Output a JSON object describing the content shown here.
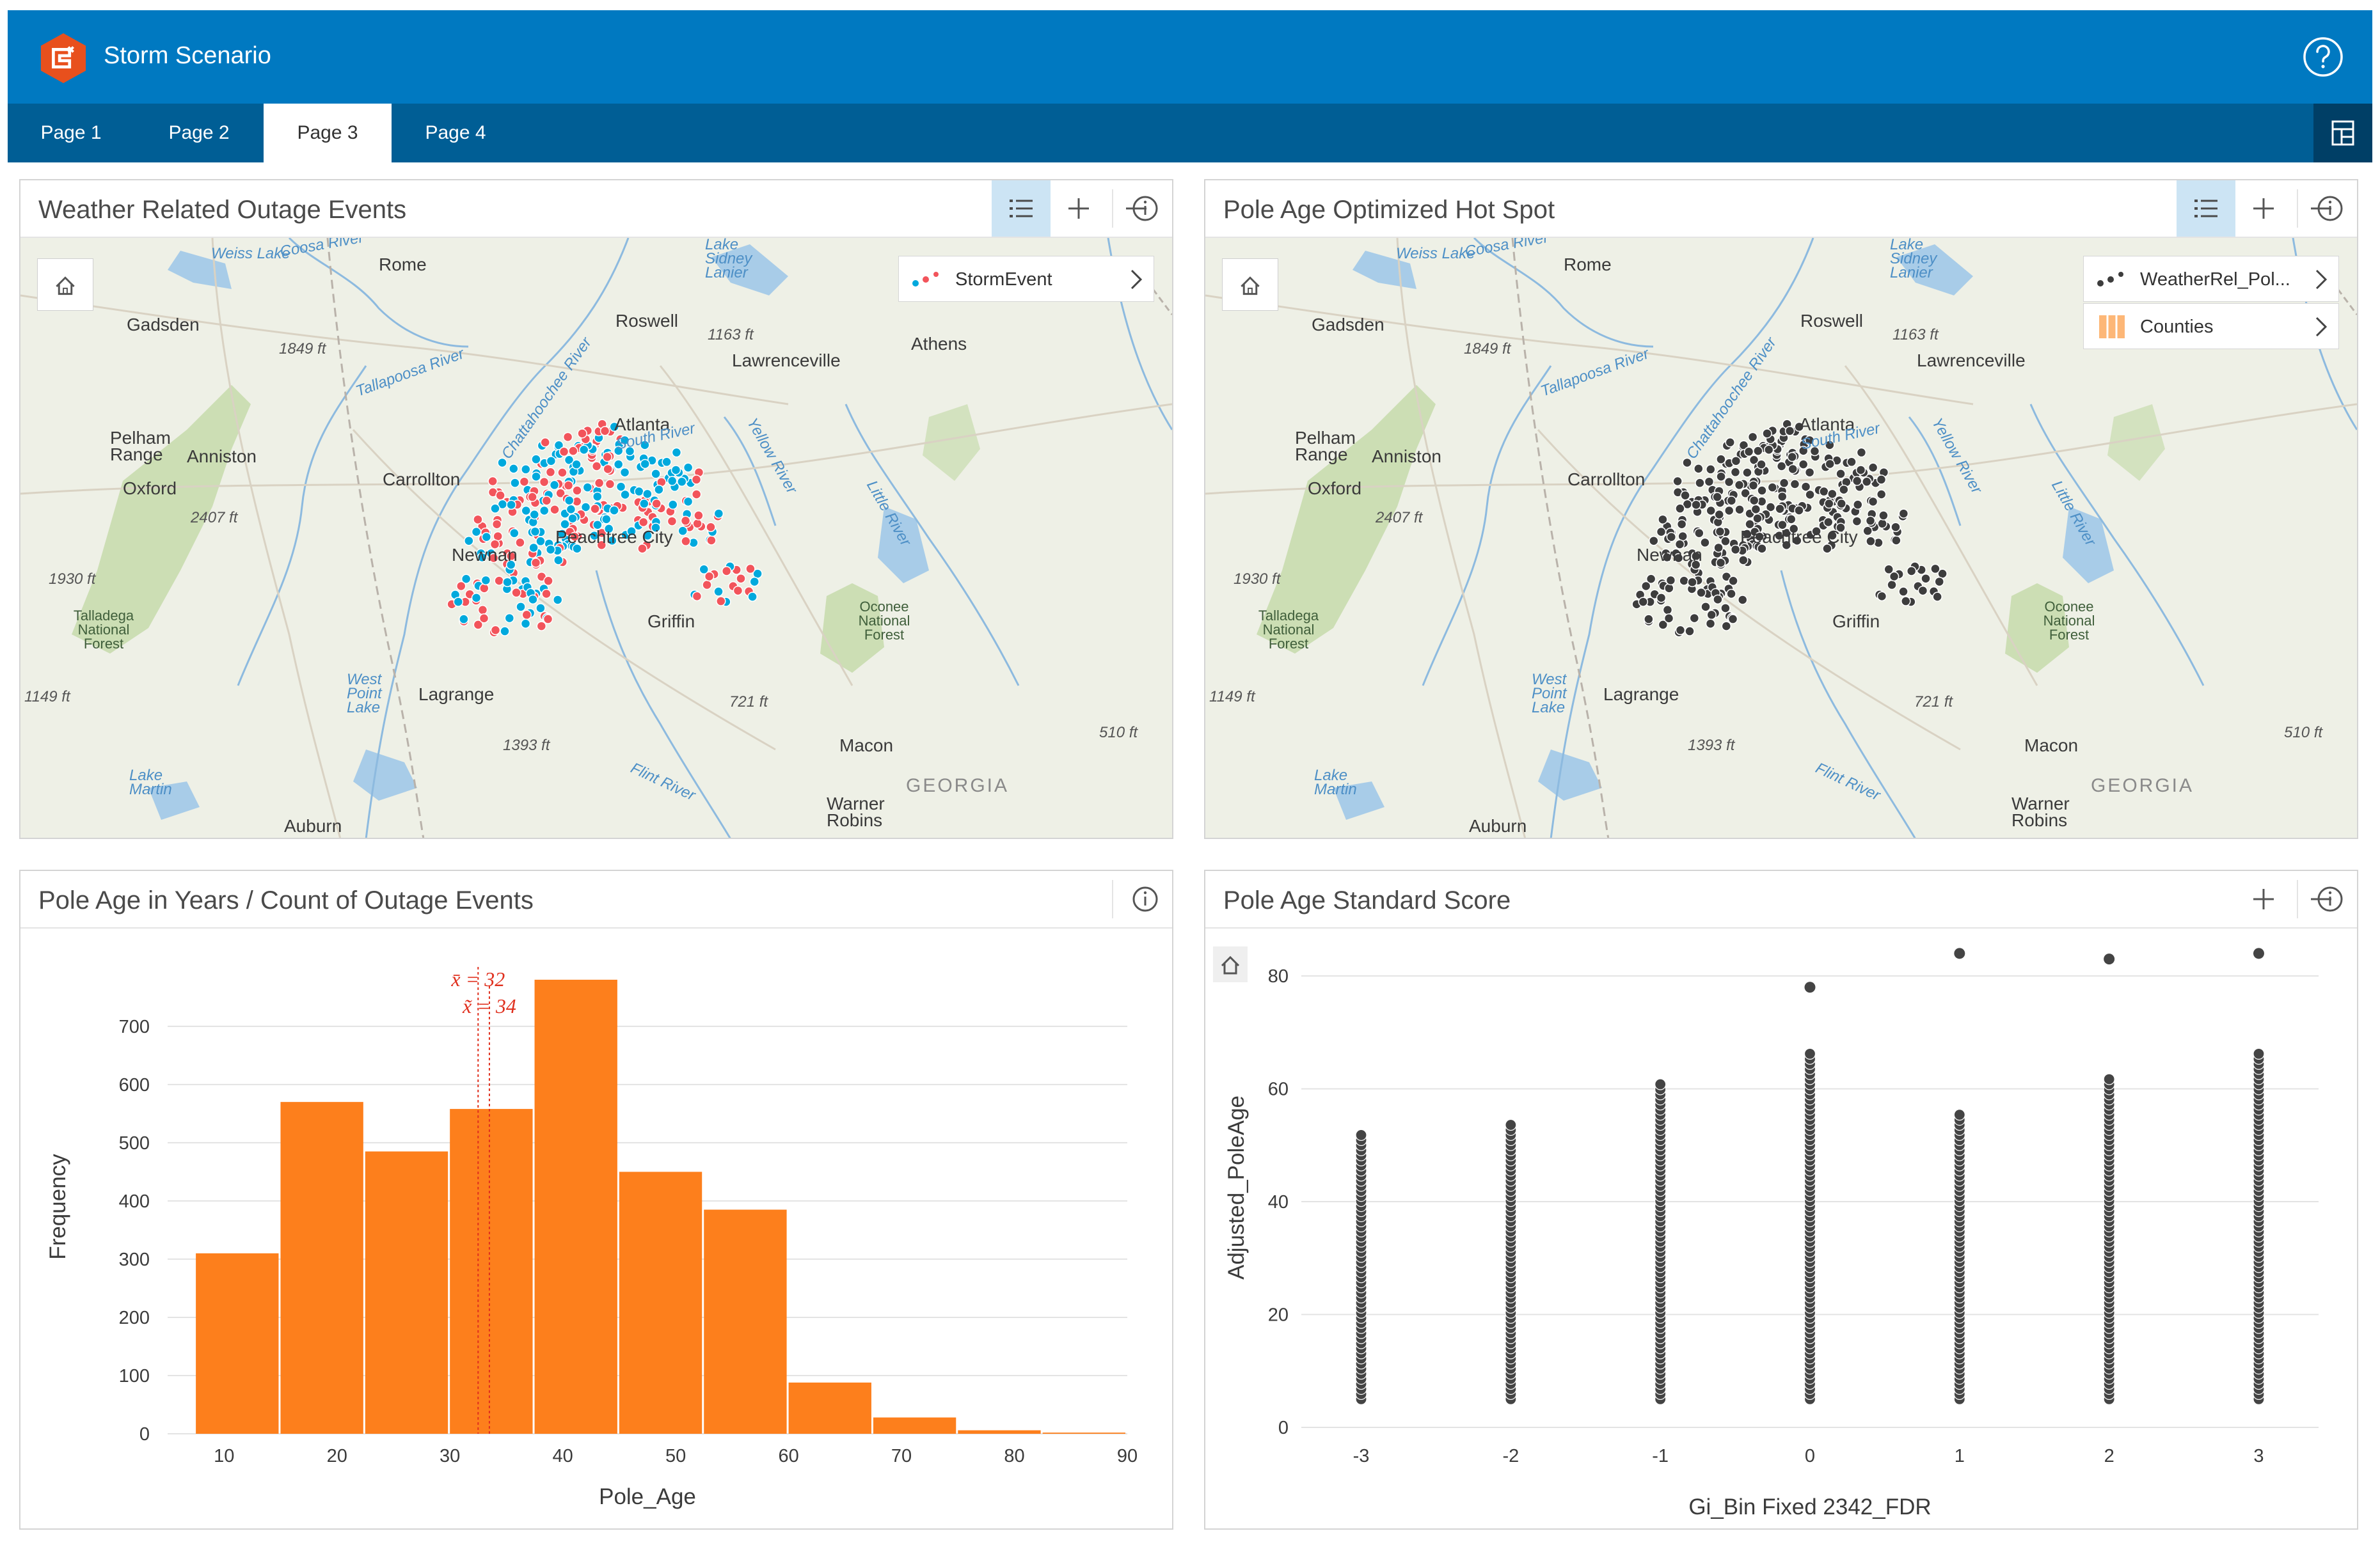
{
  "app": {
    "title": "Storm Scenario",
    "help_icon": "question-circle-icon",
    "accent_color": "#0079c1"
  },
  "tabs": [
    {
      "label": "Page 1",
      "active": false
    },
    {
      "label": "Page 2",
      "active": false
    },
    {
      "label": "Page 3",
      "active": true
    },
    {
      "label": "Page 4",
      "active": false
    }
  ],
  "panels": {
    "outage_map": {
      "title": "Weather Related Outage Events",
      "legend": [
        {
          "label": "StormEvent",
          "icon": "blue-red-points"
        }
      ],
      "point_colors": [
        "#00a9dd",
        "#f2545b"
      ]
    },
    "hotspot_map": {
      "title": "Pole Age Optimized Hot Spot",
      "legend": [
        {
          "label": "WeatherRel_Pol...",
          "icon": "dark-points"
        },
        {
          "label": "Counties",
          "icon": "orange-polygon"
        }
      ],
      "point_color": "#3d3d3d"
    },
    "histogram": {
      "title": "Pole Age in Years / Count of Outage Events"
    },
    "scatter": {
      "title": "Pole Age Standard Score"
    }
  },
  "map_labels": {
    "cities": [
      "Rome",
      "Gadsden",
      "Roswell",
      "Lawrenceville",
      "Athens",
      "Atlanta",
      "Pelham Range",
      "Anniston",
      "Oxford",
      "Carrollton",
      "Newnan",
      "Peachtree City",
      "Griffin",
      "Lagrange",
      "Macon",
      "Auburn",
      "Warner Robins"
    ],
    "water": [
      "Weiss Lake",
      "Lake Sidney Lanier",
      "Coosa River",
      "Chattahoochee River",
      "Tallapoosa River",
      "South River",
      "Yellow River",
      "Little River",
      "West Point Lake",
      "Lake Martin",
      "Flint River"
    ],
    "elevations": [
      "1849 ft",
      "1163 ft",
      "2407 ft",
      "1930 ft",
      "1149 ft",
      "721 ft",
      "510 ft",
      "1393 ft"
    ],
    "parks": [
      "Talladega National Forest",
      "Oconee National Forest"
    ],
    "state": "GEORGIA"
  },
  "chart_data": [
    {
      "type": "bar",
      "subtype": "histogram",
      "title": "Pole Age in Years / Count of Outage Events",
      "xlabel": "Pole_Age",
      "ylabel": "Frequency",
      "bin_edges": [
        7.5,
        15,
        22.5,
        30,
        37.5,
        45,
        52.5,
        60,
        67.5,
        75,
        82.5,
        90
      ],
      "values": [
        310,
        570,
        485,
        558,
        780,
        450,
        385,
        88,
        28,
        6,
        2
      ],
      "xlim": [
        5,
        90
      ],
      "ylim": [
        0,
        780
      ],
      "xticks": [
        10,
        20,
        30,
        40,
        50,
        60,
        70,
        80,
        90
      ],
      "yticks": [
        0,
        100,
        200,
        300,
        400,
        500,
        600,
        700
      ],
      "mean_label": "x̄ = 32",
      "median_label": "x̃ = 34",
      "mean": 32.5,
      "median": 33.5,
      "bar_color": "#fd7f1c",
      "grid": true
    },
    {
      "type": "scatter",
      "title": "Pole Age Standard Score",
      "xlabel": "Gi_Bin Fixed 2342_FDR",
      "ylabel": "Adjusted_PoleAge",
      "xlim": [
        -3.4,
        3.4
      ],
      "ylim": [
        0,
        85
      ],
      "xticks": [
        -3,
        -2,
        -1,
        0,
        1,
        2,
        3
      ],
      "yticks": [
        0,
        20,
        40,
        60,
        80
      ],
      "point_color": "#444444",
      "grid": true,
      "series": [
        {
          "x": -3,
          "y_min": 5,
          "y_max": 52,
          "outliers": []
        },
        {
          "x": -2,
          "y_min": 5,
          "y_max": 54,
          "outliers": []
        },
        {
          "x": -1,
          "y_min": 5,
          "y_max": 61,
          "outliers": []
        },
        {
          "x": 0,
          "y_min": 5,
          "y_max": 67,
          "outliers": [
            78
          ]
        },
        {
          "x": 1,
          "y_min": 5,
          "y_max": 56,
          "outliers": [
            84
          ]
        },
        {
          "x": 2,
          "y_min": 5,
          "y_max": 62,
          "outliers": [
            83
          ]
        },
        {
          "x": 3,
          "y_min": 5,
          "y_max": 67,
          "outliers": [
            84
          ]
        }
      ]
    }
  ]
}
